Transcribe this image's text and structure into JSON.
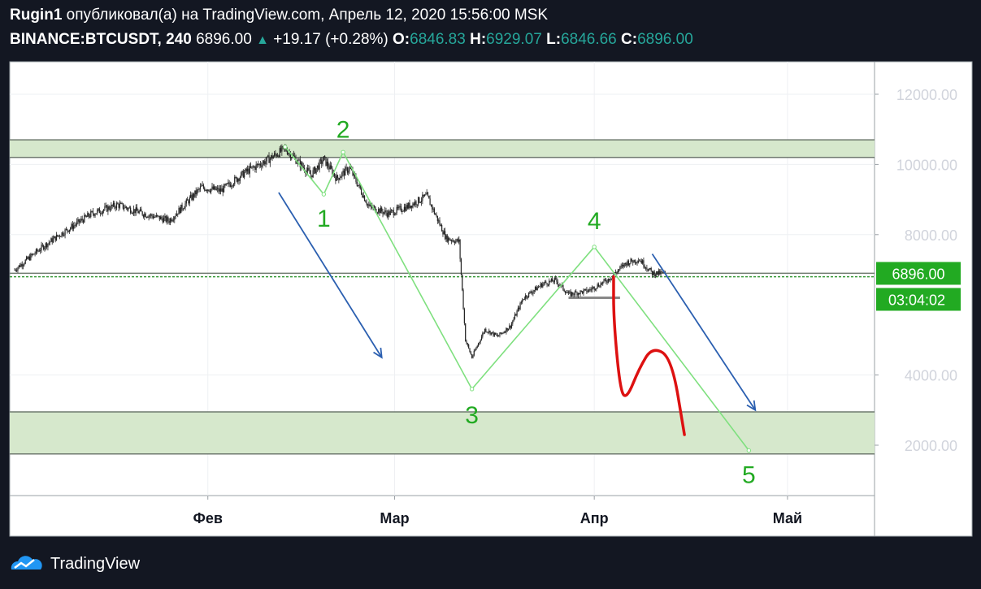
{
  "header": {
    "author": "Rugin1",
    "published_text": "опубликовал(а) на TradingView.com, Апрель 12, 2020 15:56:00 MSK",
    "symbol": "BINANCE:BTCUSDT, 240",
    "last": "6896.00",
    "change": "+19.17 (+0.28%)",
    "o_label": "O:",
    "o_value": "6846.83",
    "h_label": "H:",
    "h_value": "6929.07",
    "l_label": "L:",
    "l_value": "6846.66",
    "c_label": "C:",
    "c_value": "6896.00"
  },
  "footer": {
    "brand": "TradingView"
  },
  "colors": {
    "background": "#131722",
    "plot": "#ffffff",
    "zone_fill": "#d6e8cc",
    "wave": "#7fe07f",
    "wave_label": "#22aa22",
    "arrow": "#2b5fb0",
    "forecast": "#dd1111",
    "price_tag": "#22aa22"
  },
  "chart_data": {
    "type": "candlestick",
    "x_axis": {
      "ticks": [
        {
          "label": "Фев",
          "date": "2020-02-01"
        },
        {
          "label": "Мар",
          "date": "2020-03-01"
        },
        {
          "label": "Апр",
          "date": "2020-04-01"
        },
        {
          "label": "Май",
          "date": "2020-05-01"
        }
      ],
      "range": [
        "2020-01-02",
        "2020-05-13"
      ]
    },
    "y_axis": {
      "scale": "linear",
      "ticks": [
        "12000.00",
        "10000.00",
        "8000.00",
        "4000.00",
        "2000.00"
      ],
      "range": [
        0,
        13200
      ]
    },
    "price": {
      "last": "6896.00",
      "countdown": "03:04:02"
    },
    "price_series": [
      {
        "date": "2020-01-02",
        "close": 7000
      },
      {
        "date": "2020-01-06",
        "close": 7600
      },
      {
        "date": "2020-01-09",
        "close": 8000
      },
      {
        "date": "2020-01-14",
        "close": 8600
      },
      {
        "date": "2020-01-18",
        "close": 8850
      },
      {
        "date": "2020-01-22",
        "close": 8600
      },
      {
        "date": "2020-01-26",
        "close": 8400
      },
      {
        "date": "2020-01-31",
        "close": 9350
      },
      {
        "date": "2020-02-03",
        "close": 9250
      },
      {
        "date": "2020-02-07",
        "close": 9800
      },
      {
        "date": "2020-02-10",
        "close": 10100
      },
      {
        "date": "2020-02-13",
        "close": 10450
      },
      {
        "date": "2020-02-17",
        "close": 9700
      },
      {
        "date": "2020-02-19",
        "close": 10150
      },
      {
        "date": "2020-02-21",
        "close": 9600
      },
      {
        "date": "2020-02-23",
        "close": 9900
      },
      {
        "date": "2020-02-26",
        "close": 8800
      },
      {
        "date": "2020-02-29",
        "close": 8600
      },
      {
        "date": "2020-03-03",
        "close": 8800
      },
      {
        "date": "2020-03-06",
        "close": 9100
      },
      {
        "date": "2020-03-09",
        "close": 7900
      },
      {
        "date": "2020-03-11",
        "close": 7800
      },
      {
        "date": "2020-03-12",
        "close": 5000
      },
      {
        "date": "2020-03-13",
        "close": 4500
      },
      {
        "date": "2020-03-15",
        "close": 5300
      },
      {
        "date": "2020-03-17",
        "close": 5100
      },
      {
        "date": "2020-03-19",
        "close": 5400
      },
      {
        "date": "2020-03-21",
        "close": 6200
      },
      {
        "date": "2020-03-24",
        "close": 6600
      },
      {
        "date": "2020-03-26",
        "close": 6700
      },
      {
        "date": "2020-03-28",
        "close": 6300
      },
      {
        "date": "2020-03-31",
        "close": 6400
      },
      {
        "date": "2020-04-03",
        "close": 6700
      },
      {
        "date": "2020-04-06",
        "close": 7200
      },
      {
        "date": "2020-04-08",
        "close": 7300
      },
      {
        "date": "2020-04-10",
        "close": 6900
      },
      {
        "date": "2020-04-12",
        "close": 6896
      }
    ],
    "zones": [
      {
        "from": 10200,
        "to": 10700
      },
      {
        "from": 1750,
        "to": 2950
      }
    ],
    "horizontal_levels": [
      6900,
      6800
    ],
    "short_level": {
      "from_date": "2020-03-28",
      "to_date": "2020-04-05",
      "price": 6200
    },
    "waves": [
      {
        "label": "",
        "date": "2020-02-13",
        "price": 10500
      },
      {
        "label": "1",
        "date": "2020-02-19",
        "price": 9150
      },
      {
        "label": "2",
        "date": "2020-02-22",
        "price": 10350
      },
      {
        "label": "3",
        "date": "2020-03-13",
        "price": 3600
      },
      {
        "label": "4",
        "date": "2020-04-01",
        "price": 7650
      },
      {
        "label": "5",
        "date": "2020-04-25",
        "price": 1850
      }
    ],
    "arrows": [
      {
        "from_date": "2020-02-12",
        "from_price": 9200,
        "to_date": "2020-02-28",
        "to_price": 4500
      },
      {
        "from_date": "2020-04-10",
        "from_price": 7450,
        "to_date": "2020-04-26",
        "to_price": 3000
      }
    ],
    "forecast_path": [
      {
        "date": "2020-04-04",
        "price": 6800
      },
      {
        "date": "2020-04-04",
        "price": 5600
      },
      {
        "date": "2020-04-05",
        "price": 3600
      },
      {
        "date": "2020-04-06",
        "price": 3300
      },
      {
        "date": "2020-04-08",
        "price": 4200
      },
      {
        "date": "2020-04-10",
        "price": 4800
      },
      {
        "date": "2020-04-13",
        "price": 4500
      },
      {
        "date": "2020-04-15",
        "price": 2300
      }
    ]
  }
}
